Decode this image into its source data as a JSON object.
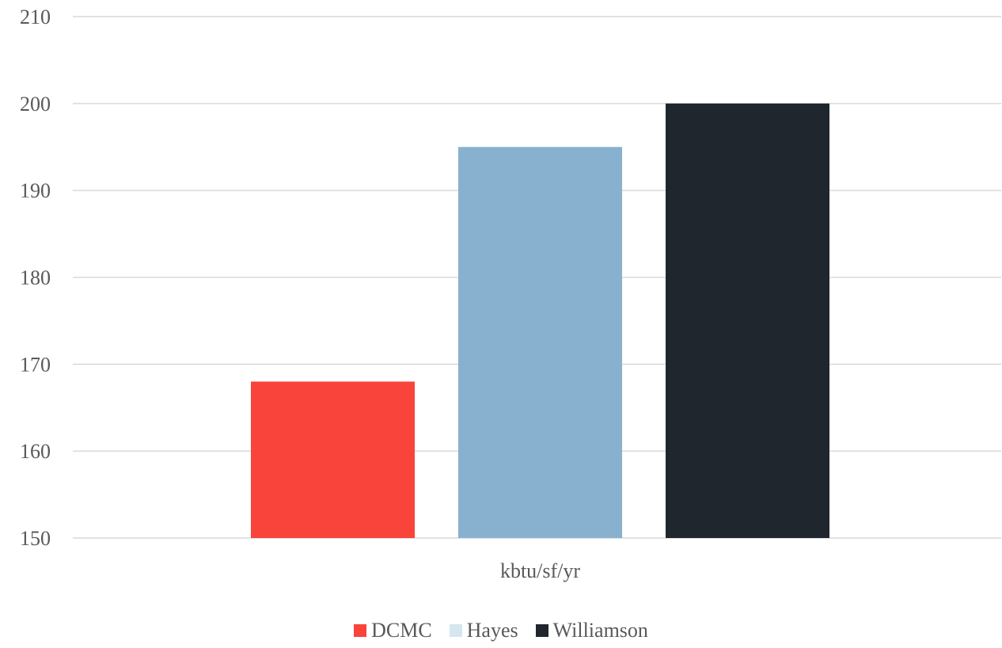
{
  "chart_data": {
    "type": "bar",
    "categories": [
      "kbtu/sf/yr"
    ],
    "series": [
      {
        "name": "DCMC",
        "values": [
          168
        ],
        "color": "#f9443b",
        "legend_color": "#f9443b"
      },
      {
        "name": "Hayes",
        "values": [
          195
        ],
        "color": "#88b1d0",
        "legend_color": "#d6e6f0"
      },
      {
        "name": "Williamson",
        "values": [
          200
        ],
        "color": "#20262e",
        "legend_color": "#20262e"
      }
    ],
    "ylim": [
      150,
      210
    ],
    "yticks": [
      150,
      160,
      170,
      180,
      190,
      200,
      210
    ],
    "grid": true,
    "legend_position": "bottom"
  }
}
